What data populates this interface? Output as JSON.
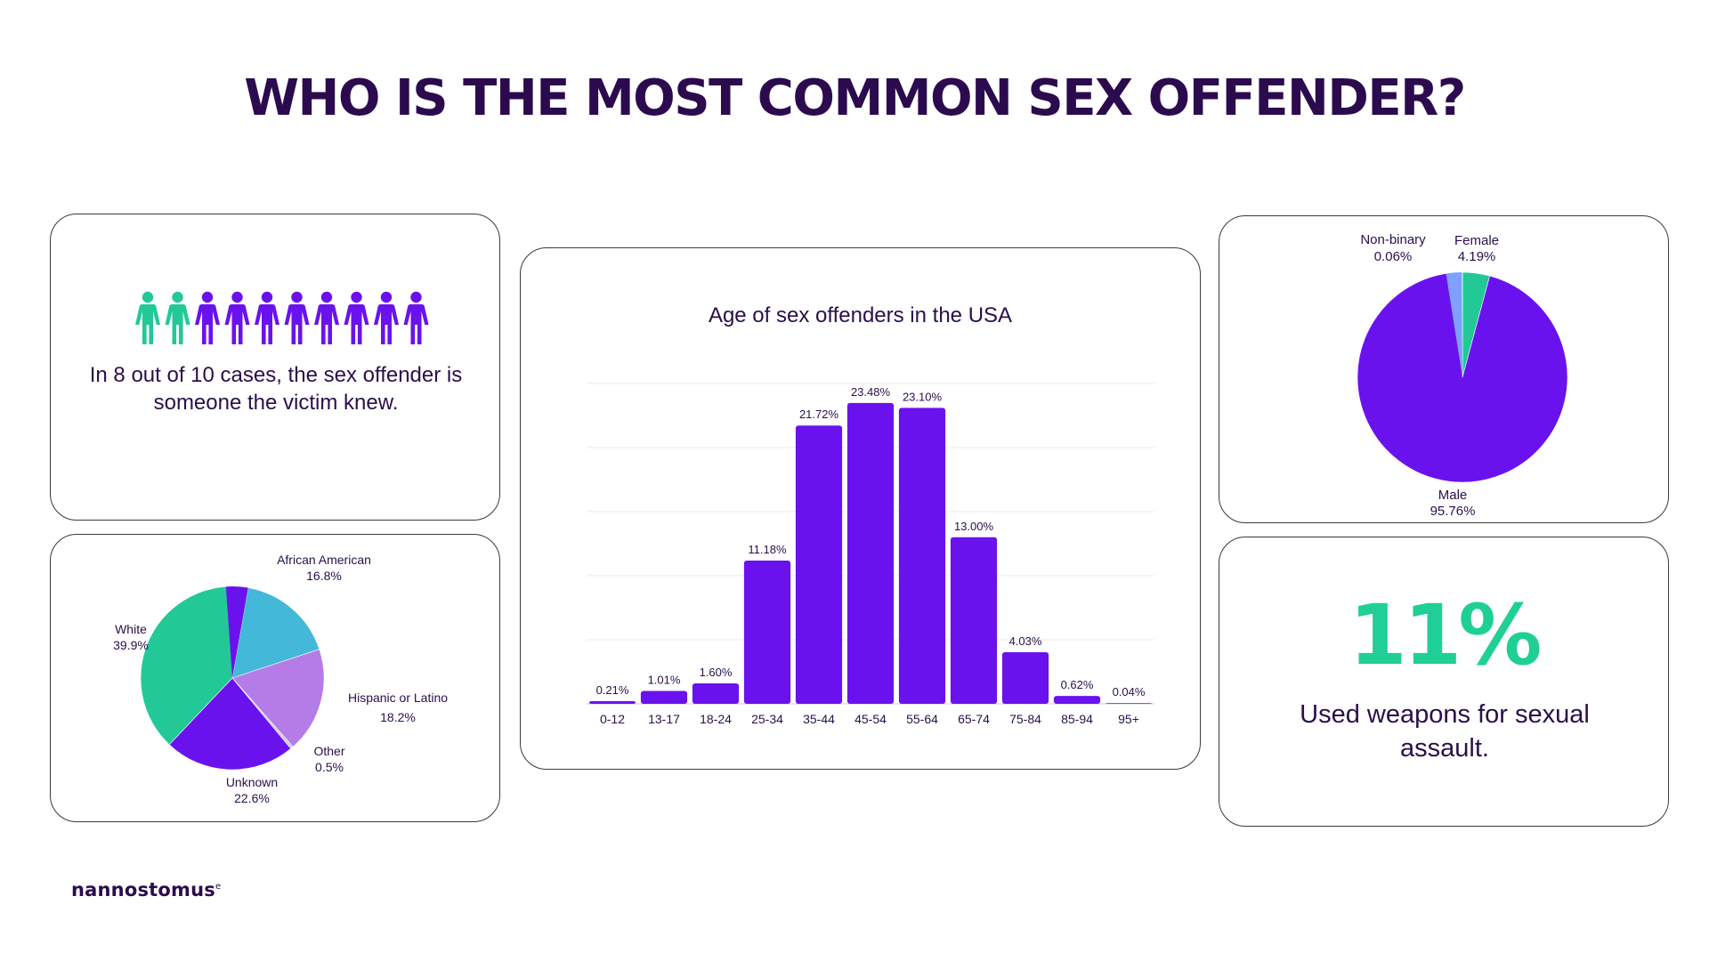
{
  "page": {
    "title": "WHO IS THE MOST COMMON SEX OFFENDER?"
  },
  "colors": {
    "purple": "#6a12ee",
    "green": "#22c997",
    "light_blue": "#44b8d8",
    "lavender": "#b57ce8",
    "dark_text": "#2a0f4a"
  },
  "acquaintance": {
    "icon": "person-icon",
    "total": 10,
    "highlighted": 8,
    "text": "In 8 out of 10 cases, the sex offender is someone the victim knew."
  },
  "weapons": {
    "stat": "11%",
    "text": "Used weapons for sexual assault."
  },
  "logo": {
    "text": "nannostomus",
    "mark": "e"
  },
  "chart_data": [
    {
      "type": "pie",
      "name": "race",
      "title": "",
      "slices": [
        {
          "label": "African American",
          "value": 16.8,
          "display": "16.8%",
          "color": "#44b8d8"
        },
        {
          "label": "Hispanic or Latino",
          "value": 18.2,
          "display": "18.2%",
          "color": "#b57ce8"
        },
        {
          "label": "Other",
          "value": 0.5,
          "display": "0.5%",
          "color": "#c9c9d6"
        },
        {
          "label": "Unknown",
          "value": 22.6,
          "display": "22.6%",
          "color": "#6a12ee"
        },
        {
          "label": "White",
          "value": 39.9,
          "display": "39.9%",
          "color": "#22c997"
        }
      ]
    },
    {
      "type": "bar",
      "name": "age",
      "title": "Age of sex offenders in the USA",
      "categories": [
        "0-12",
        "13-17",
        "18-24",
        "25-34",
        "35-44",
        "45-54",
        "55-64",
        "65-74",
        "75-84",
        "85-94",
        "95+"
      ],
      "values": [
        0.21,
        1.01,
        1.6,
        11.18,
        21.72,
        23.48,
        23.1,
        13.0,
        4.03,
        0.62,
        0.04
      ],
      "labels": [
        "0.21%",
        "1.01%",
        "1.60%",
        "11.18%",
        "21.72%",
        "23.48%",
        "23.10%",
        "13.00%",
        "4.03%",
        "0.62%",
        "0.04%"
      ],
      "ylim": [
        0,
        25
      ],
      "grid": true,
      "color": "#6a12ee"
    },
    {
      "type": "pie",
      "name": "gender",
      "title": "",
      "slices": [
        {
          "label": "Female",
          "value": 4.19,
          "display": "4.19%",
          "color": "#22c997"
        },
        {
          "label": "Male",
          "value": 95.76,
          "display": "95.76%",
          "color": "#6a12ee"
        },
        {
          "label": "Non-binary",
          "value": 0.06,
          "display": "0.06%",
          "color": "#7fa0ff"
        }
      ]
    }
  ]
}
